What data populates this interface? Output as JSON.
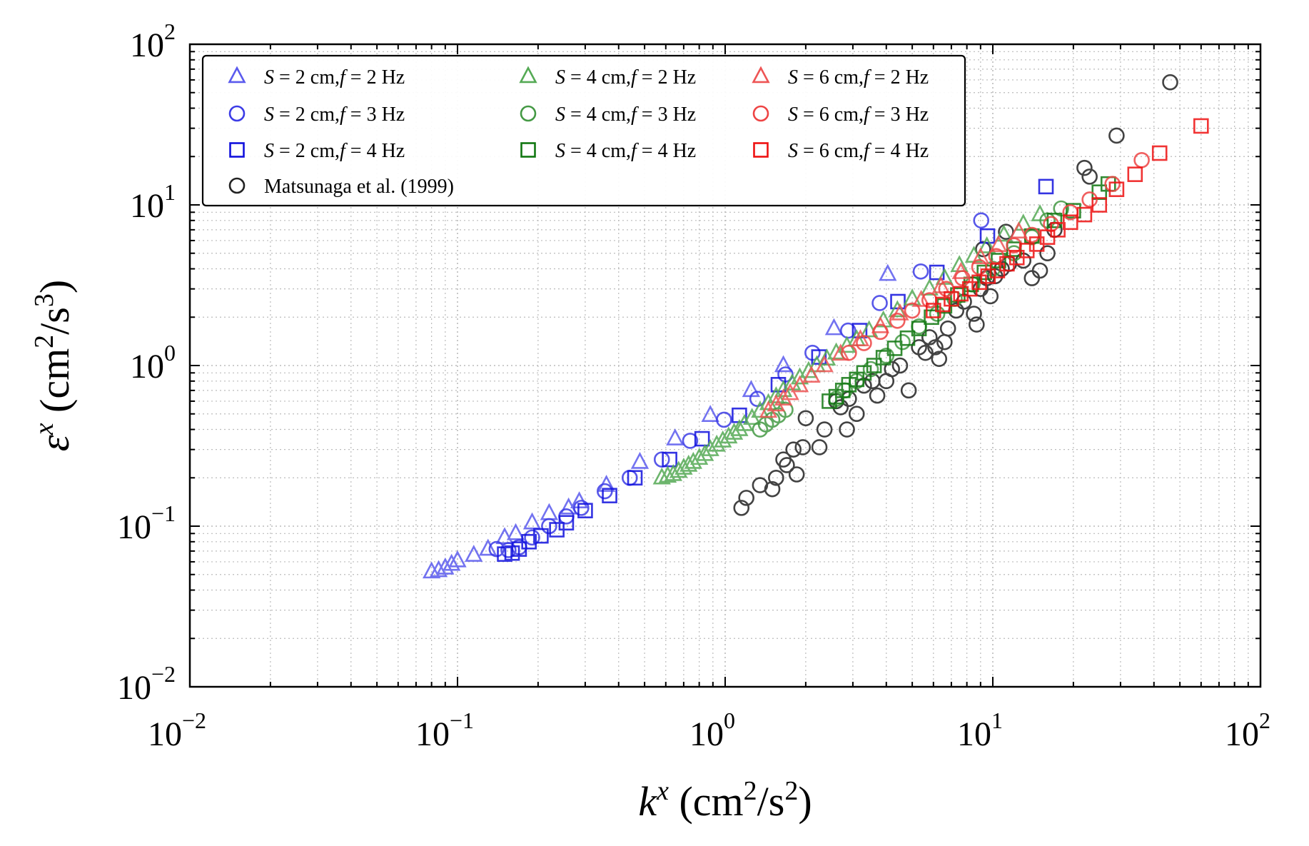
{
  "chart_data": {
    "type": "scatter",
    "x_scale": "log",
    "y_scale": "log",
    "xlim": [
      0.01,
      100
    ],
    "ylim": [
      0.01,
      100
    ],
    "grid": true,
    "legend_position": "top-left",
    "legend_columns": 3,
    "xlabel": {
      "symbol": "k",
      "sup": "x",
      "units_pre": " (cm",
      "units_sup1": "2",
      "units_mid": "/s",
      "units_sup2": "2",
      "units_post": ")"
    },
    "ylabel": {
      "symbol": "ε",
      "sup": "x",
      "units_pre": " (cm",
      "units_sup1": "2",
      "units_mid": "/s",
      "units_sup2": "3",
      "units_post": ")"
    },
    "x_ticks": [
      {
        "base": "10",
        "exp": "−2"
      },
      {
        "base": "10",
        "exp": "−1"
      },
      {
        "base": "10",
        "exp": "0"
      },
      {
        "base": "10",
        "exp": "1"
      },
      {
        "base": "10",
        "exp": "2"
      }
    ],
    "y_ticks": [
      {
        "base": "10",
        "exp": "−2"
      },
      {
        "base": "10",
        "exp": "−1"
      },
      {
        "base": "10",
        "exp": "0"
      },
      {
        "base": "10",
        "exp": "1"
      },
      {
        "base": "10",
        "exp": "2"
      }
    ],
    "series": [
      {
        "name": "S = 2 cm, f = 2 Hz",
        "label_parts": [
          "S",
          "2 cm,",
          "f",
          "2 Hz"
        ],
        "marker": "triangle",
        "color": "#5b5bee",
        "points": [
          [
            0.08,
            0.052
          ],
          [
            0.085,
            0.053
          ],
          [
            0.09,
            0.055
          ],
          [
            0.095,
            0.058
          ],
          [
            0.1,
            0.061
          ],
          [
            0.115,
            0.066
          ],
          [
            0.13,
            0.072
          ],
          [
            0.15,
            0.085
          ],
          [
            0.165,
            0.09
          ],
          [
            0.19,
            0.105
          ],
          [
            0.22,
            0.12
          ],
          [
            0.26,
            0.13
          ],
          [
            0.285,
            0.142
          ],
          [
            0.36,
            0.18
          ],
          [
            0.48,
            0.25
          ],
          [
            0.65,
            0.35
          ],
          [
            0.88,
            0.49
          ],
          [
            1.25,
            0.7
          ],
          [
            1.65,
            1.0
          ],
          [
            2.55,
            1.7
          ],
          [
            4.05,
            3.7
          ]
        ]
      },
      {
        "name": "S = 2 cm, f = 3 Hz",
        "label_parts": [
          "S",
          "2 cm,",
          "f",
          "3 Hz"
        ],
        "marker": "circle",
        "color": "#3c3ce6",
        "points": [
          [
            0.14,
            0.072
          ],
          [
            0.155,
            0.071
          ],
          [
            0.17,
            0.074
          ],
          [
            0.19,
            0.085
          ],
          [
            0.22,
            0.1
          ],
          [
            0.255,
            0.115
          ],
          [
            0.29,
            0.13
          ],
          [
            0.355,
            0.165
          ],
          [
            0.44,
            0.2
          ],
          [
            0.58,
            0.26
          ],
          [
            0.74,
            0.34
          ],
          [
            0.99,
            0.46
          ],
          [
            1.32,
            0.62
          ],
          [
            1.68,
            0.88
          ],
          [
            2.12,
            1.2
          ],
          [
            2.88,
            1.65
          ],
          [
            3.78,
            2.45
          ],
          [
            5.38,
            3.85
          ],
          [
            9.05,
            8.0
          ]
        ]
      },
      {
        "name": "S = 2 cm, f = 4 Hz",
        "label_parts": [
          "S",
          "2 cm,",
          "f",
          "4 Hz"
        ],
        "marker": "square",
        "color": "#1111dd",
        "points": [
          [
            0.15,
            0.067
          ],
          [
            0.16,
            0.068
          ],
          [
            0.17,
            0.072
          ],
          [
            0.185,
            0.08
          ],
          [
            0.205,
            0.087
          ],
          [
            0.235,
            0.095
          ],
          [
            0.255,
            0.105
          ],
          [
            0.3,
            0.125
          ],
          [
            0.37,
            0.155
          ],
          [
            0.46,
            0.2
          ],
          [
            0.62,
            0.26
          ],
          [
            0.82,
            0.35
          ],
          [
            1.13,
            0.49
          ],
          [
            1.58,
            0.76
          ],
          [
            2.24,
            1.13
          ],
          [
            3.18,
            1.65
          ],
          [
            4.42,
            2.5
          ],
          [
            6.18,
            3.8
          ],
          [
            9.55,
            6.4
          ],
          [
            15.8,
            13.0
          ]
        ]
      },
      {
        "name": "S = 4 cm, f = 2 Hz",
        "label_parts": [
          "S",
          "4 cm,",
          "f",
          "2 Hz"
        ],
        "marker": "triangle",
        "color": "#55aa55",
        "points": [
          [
            0.58,
            0.2
          ],
          [
            0.61,
            0.205
          ],
          [
            0.64,
            0.21
          ],
          [
            0.67,
            0.22
          ],
          [
            0.7,
            0.23
          ],
          [
            0.73,
            0.24
          ],
          [
            0.76,
            0.25
          ],
          [
            0.8,
            0.265
          ],
          [
            0.84,
            0.28
          ],
          [
            0.88,
            0.3
          ],
          [
            0.93,
            0.32
          ],
          [
            0.98,
            0.34
          ],
          [
            1.03,
            0.36
          ],
          [
            1.08,
            0.38
          ],
          [
            1.13,
            0.4
          ],
          [
            1.18,
            0.43
          ],
          [
            1.26,
            0.47
          ],
          [
            1.35,
            0.52
          ],
          [
            1.45,
            0.58
          ],
          [
            1.55,
            0.64
          ],
          [
            1.65,
            0.7
          ],
          [
            1.78,
            0.77
          ],
          [
            1.9,
            0.84
          ],
          [
            2.05,
            0.92
          ],
          [
            2.2,
            1.0
          ],
          [
            2.4,
            1.1
          ],
          [
            2.6,
            1.2
          ],
          [
            2.85,
            1.32
          ],
          [
            3.1,
            1.45
          ],
          [
            3.45,
            1.65
          ],
          [
            3.9,
            1.9
          ],
          [
            4.4,
            2.2
          ],
          [
            5.0,
            2.6
          ],
          [
            5.8,
            3.0
          ],
          [
            6.6,
            3.5
          ],
          [
            7.5,
            4.2
          ],
          [
            8.5,
            4.8
          ],
          [
            9.5,
            5.5
          ],
          [
            11,
            6.5
          ],
          [
            13,
            7.6
          ],
          [
            15,
            8.7
          ]
        ]
      },
      {
        "name": "S = 4 cm, f = 3 Hz",
        "label_parts": [
          "S",
          "4 cm,",
          "f",
          "3 Hz"
        ],
        "marker": "circle",
        "color": "#449944",
        "points": [
          [
            1.35,
            0.4
          ],
          [
            1.42,
            0.43
          ],
          [
            1.5,
            0.46
          ],
          [
            1.58,
            0.49
          ],
          [
            1.68,
            0.53
          ],
          [
            2.6,
            0.62
          ],
          [
            2.8,
            0.7
          ],
          [
            3.1,
            0.8
          ],
          [
            3.5,
            0.95
          ],
          [
            4.0,
            1.15
          ],
          [
            4.6,
            1.4
          ],
          [
            5.3,
            1.75
          ],
          [
            6.2,
            2.1
          ],
          [
            7.2,
            2.6
          ],
          [
            8.4,
            3.2
          ],
          [
            10,
            4.0
          ],
          [
            12,
            5.0
          ],
          [
            14,
            6.3
          ],
          [
            16,
            8.0
          ],
          [
            18,
            9.5
          ]
        ]
      },
      {
        "name": "S = 4 cm, f = 4 Hz",
        "label_parts": [
          "S",
          "4 cm,",
          "f",
          "4 Hz"
        ],
        "marker": "square",
        "color": "#117711",
        "points": [
          [
            2.45,
            0.6
          ],
          [
            2.6,
            0.64
          ],
          [
            2.75,
            0.7
          ],
          [
            2.9,
            0.76
          ],
          [
            3.1,
            0.82
          ],
          [
            3.3,
            0.9
          ],
          [
            3.6,
            1.0
          ],
          [
            3.9,
            1.12
          ],
          [
            4.3,
            1.28
          ],
          [
            4.8,
            1.48
          ],
          [
            5.3,
            1.7
          ],
          [
            5.9,
            2.0
          ],
          [
            6.6,
            2.35
          ],
          [
            7.4,
            2.75
          ],
          [
            8.3,
            3.2
          ],
          [
            9.3,
            3.8
          ],
          [
            10.5,
            4.5
          ],
          [
            12,
            5.3
          ],
          [
            14,
            6.4
          ],
          [
            17,
            8.0
          ],
          [
            20,
            9.2
          ],
          [
            25,
            12
          ],
          [
            27,
            13.5
          ]
        ]
      },
      {
        "name": "S = 6 cm, f = 2 Hz",
        "label_parts": [
          "S",
          "6 cm,",
          "f",
          "2 Hz"
        ],
        "marker": "triangle",
        "color": "#ee5555",
        "points": [
          [
            1.45,
            0.52
          ],
          [
            1.55,
            0.57
          ],
          [
            1.65,
            0.62
          ],
          [
            1.75,
            0.67
          ],
          [
            1.9,
            0.75
          ],
          [
            2.1,
            0.86
          ],
          [
            2.35,
            1.0
          ],
          [
            2.7,
            1.18
          ],
          [
            3.2,
            1.45
          ],
          [
            3.8,
            1.75
          ],
          [
            4.5,
            2.1
          ],
          [
            5.4,
            2.55
          ],
          [
            6.4,
            3.1
          ],
          [
            7.6,
            3.8
          ],
          [
            9.0,
            4.7
          ],
          [
            10.5,
            5.6
          ],
          [
            12.5,
            6.8
          ]
        ]
      },
      {
        "name": "S = 6 cm, f = 3 Hz",
        "label_parts": [
          "S",
          "6 cm,",
          "f",
          "3 Hz"
        ],
        "marker": "circle",
        "color": "#ee4444",
        "points": [
          [
            2.9,
            1.2
          ],
          [
            3.3,
            1.38
          ],
          [
            3.8,
            1.62
          ],
          [
            4.4,
            1.9
          ],
          [
            5.0,
            2.2
          ],
          [
            5.8,
            2.55
          ],
          [
            6.7,
            3.0
          ],
          [
            7.7,
            3.5
          ],
          [
            8.9,
            4.1
          ],
          [
            10.3,
            4.8
          ],
          [
            12,
            5.6
          ],
          [
            14,
            6.5
          ],
          [
            16.5,
            7.6
          ],
          [
            19.5,
            9.0
          ],
          [
            23,
            10.8
          ],
          [
            28,
            13.5
          ],
          [
            36,
            19
          ]
        ]
      },
      {
        "name": "S = 6 cm, f = 4 Hz",
        "label_parts": [
          "S",
          "6 cm,",
          "f",
          "4 Hz"
        ],
        "marker": "square",
        "color": "#ee1111",
        "points": [
          [
            6.0,
            2.2
          ],
          [
            6.5,
            2.4
          ],
          [
            7.0,
            2.6
          ],
          [
            7.6,
            2.8
          ],
          [
            8.2,
            3.0
          ],
          [
            8.9,
            3.3
          ],
          [
            9.6,
            3.6
          ],
          [
            10.4,
            3.9
          ],
          [
            11.3,
            4.3
          ],
          [
            12.3,
            4.7
          ],
          [
            13.4,
            5.2
          ],
          [
            14.6,
            5.7
          ],
          [
            16,
            6.3
          ],
          [
            17.5,
            7.0
          ],
          [
            19.5,
            7.8
          ],
          [
            22,
            8.7
          ],
          [
            25,
            10.0
          ],
          [
            29,
            12.5
          ],
          [
            34,
            15.5
          ],
          [
            42,
            21
          ],
          [
            60,
            31
          ]
        ]
      },
      {
        "name": "Matsunaga et al. (1999)",
        "label_parts": [
          "Matsunaga et al. (1999)"
        ],
        "marker": "circle",
        "color": "#222222",
        "points": [
          [
            1.15,
            0.13
          ],
          [
            1.2,
            0.15
          ],
          [
            1.35,
            0.18
          ],
          [
            1.5,
            0.17
          ],
          [
            1.55,
            0.2
          ],
          [
            1.65,
            0.26
          ],
          [
            1.7,
            0.24
          ],
          [
            1.8,
            0.3
          ],
          [
            1.95,
            0.31
          ],
          [
            1.85,
            0.21
          ],
          [
            2.0,
            0.47
          ],
          [
            2.25,
            0.31
          ],
          [
            2.35,
            0.4
          ],
          [
            2.6,
            0.6
          ],
          [
            2.7,
            0.55
          ],
          [
            2.85,
            0.4
          ],
          [
            2.9,
            0.62
          ],
          [
            3.1,
            0.5
          ],
          [
            3.3,
            0.75
          ],
          [
            3.55,
            0.8
          ],
          [
            3.7,
            0.65
          ],
          [
            4.0,
            0.8
          ],
          [
            4.2,
            0.95
          ],
          [
            4.5,
            1.0
          ],
          [
            4.85,
            0.7
          ],
          [
            5.3,
            1.3
          ],
          [
            5.6,
            1.2
          ],
          [
            5.8,
            1.5
          ],
          [
            6.1,
            1.3
          ],
          [
            6.3,
            1.1
          ],
          [
            6.6,
            1.4
          ],
          [
            6.8,
            1.7
          ],
          [
            7.3,
            2.2
          ],
          [
            7.8,
            2.5
          ],
          [
            8.5,
            2.1
          ],
          [
            8.7,
            1.8
          ],
          [
            9.0,
            3.0
          ],
          [
            9.5,
            3.5
          ],
          [
            9.8,
            2.7
          ],
          [
            10.2,
            3.6
          ],
          [
            10.8,
            4.0
          ],
          [
            11.5,
            4.3
          ],
          [
            13,
            4.5
          ],
          [
            14,
            3.5
          ],
          [
            15,
            3.9
          ],
          [
            16,
            5.0
          ],
          [
            17,
            7.0
          ],
          [
            9.2,
            5.3
          ],
          [
            11.2,
            6.8
          ],
          [
            22,
            17
          ],
          [
            23,
            15
          ],
          [
            29,
            27
          ],
          [
            46,
            58
          ]
        ]
      }
    ]
  }
}
